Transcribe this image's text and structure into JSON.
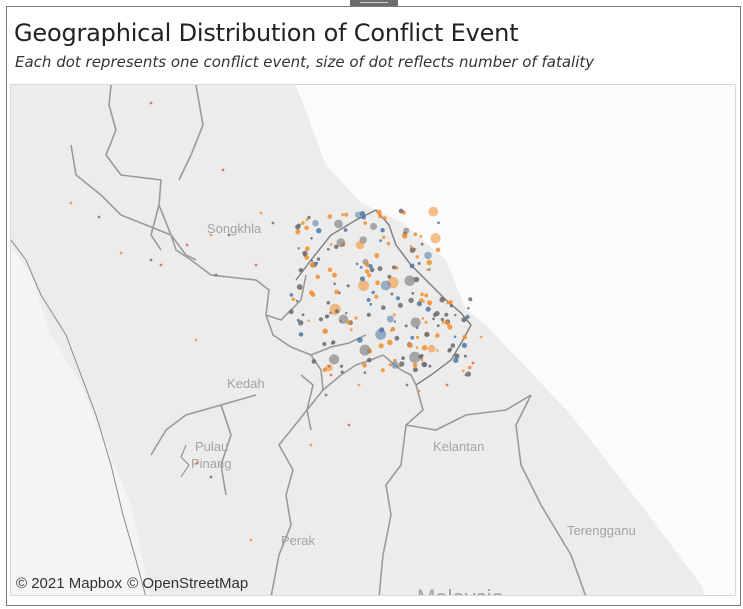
{
  "header": {
    "title": "Geographical Distribution of Conflict Event",
    "subtitle": "Each dot represents one conflict event, size of dot reflects number of fatality"
  },
  "map": {
    "place_labels": [
      "Songkhla",
      "Kedah",
      "Pulau",
      "Pinang",
      "Kelantan",
      "Terengganu",
      "Perak",
      "Malaysia"
    ],
    "attribution": [
      "© 2021 Mapbox",
      "© OpenStreetMap"
    ]
  },
  "colors": {
    "land": "#ececec",
    "sea": "#fbfbfb",
    "boundary": "#9a9a9a",
    "event_blue": "#4e79a7",
    "event_orange": "#f28e2b",
    "event_grey": "#6b6b6b",
    "event_red": "#e15759"
  }
}
